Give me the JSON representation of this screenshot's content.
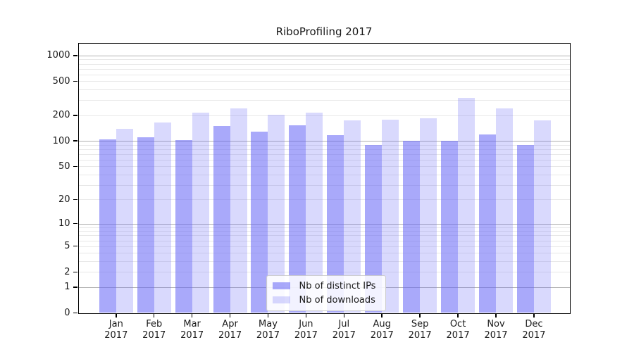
{
  "title": "RiboProfiling 2017",
  "chart_data": {
    "type": "bar",
    "title": "RiboProfiling 2017",
    "categories": [
      "Jan 2017",
      "Feb 2017",
      "Mar 2017",
      "Apr 2017",
      "May 2017",
      "Jun 2017",
      "Jul 2017",
      "Aug 2017",
      "Sep 2017",
      "Oct 2017",
      "Nov 2017",
      "Dec 2017"
    ],
    "series": [
      {
        "name": "Nb of distinct IPs",
        "color": "rgba(102,102,246,0.56)",
        "values": [
          104,
          111,
          102,
          150,
          128,
          152,
          116,
          90,
          100,
          100,
          119,
          90
        ]
      },
      {
        "name": "Nb of downloads",
        "color": "rgba(102,102,246,0.25)",
        "values": [
          139,
          166,
          216,
          241,
          203,
          213,
          174,
          177,
          186,
          318,
          240,
          174
        ]
      }
    ],
    "xlabel": "",
    "ylabel": "",
    "yscale": "log1p",
    "ylim": [
      0,
      1386
    ],
    "yticks": [
      0,
      1,
      2,
      5,
      10,
      20,
      50,
      100,
      200,
      500,
      1000
    ],
    "grid": "horizontal",
    "legend_position": "lower-center-inside",
    "colors": {
      "major_grid": "#b0b0b0",
      "minor_grid": "#e8e8e8",
      "axis": "#000000",
      "text": "#1a1a1a"
    }
  }
}
